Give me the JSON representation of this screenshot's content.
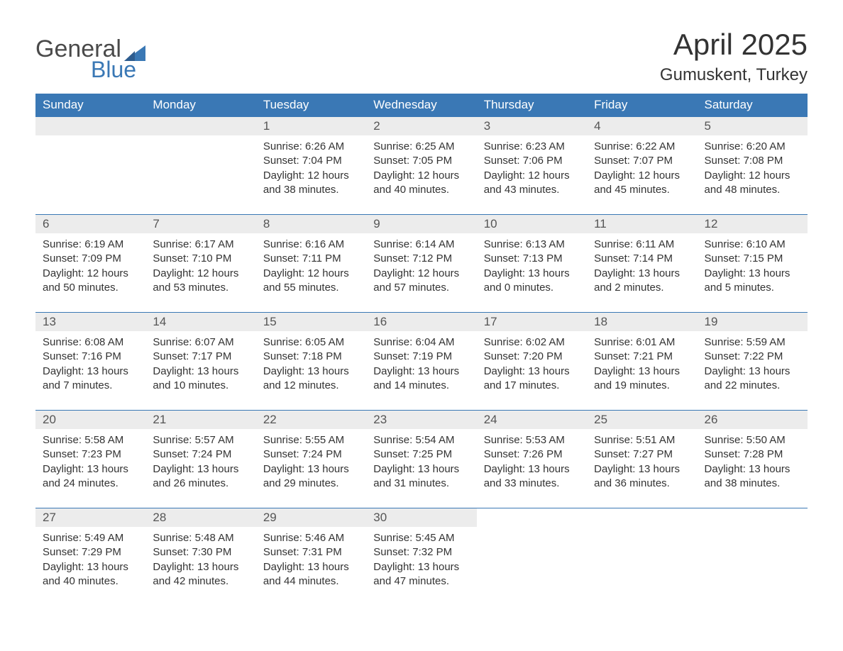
{
  "logo": {
    "text_general": "General",
    "text_blue": "Blue",
    "flag_color": "#3a78b5"
  },
  "title": {
    "month_year": "April 2025",
    "location": "Gumuskent, Turkey"
  },
  "calendar": {
    "header_bg": "#3a78b5",
    "header_fg": "#ffffff",
    "daynum_bg": "#ececec",
    "row_border": "#3a78b5",
    "text_color": "#333333",
    "background": "#ffffff",
    "columns": [
      "Sunday",
      "Monday",
      "Tuesday",
      "Wednesday",
      "Thursday",
      "Friday",
      "Saturday"
    ],
    "weeks": [
      [
        {
          "empty": true
        },
        {
          "empty": true
        },
        {
          "day": "1",
          "sunrise": "Sunrise: 6:26 AM",
          "sunset": "Sunset: 7:04 PM",
          "daylight1": "Daylight: 12 hours",
          "daylight2": "and 38 minutes."
        },
        {
          "day": "2",
          "sunrise": "Sunrise: 6:25 AM",
          "sunset": "Sunset: 7:05 PM",
          "daylight1": "Daylight: 12 hours",
          "daylight2": "and 40 minutes."
        },
        {
          "day": "3",
          "sunrise": "Sunrise: 6:23 AM",
          "sunset": "Sunset: 7:06 PM",
          "daylight1": "Daylight: 12 hours",
          "daylight2": "and 43 minutes."
        },
        {
          "day": "4",
          "sunrise": "Sunrise: 6:22 AM",
          "sunset": "Sunset: 7:07 PM",
          "daylight1": "Daylight: 12 hours",
          "daylight2": "and 45 minutes."
        },
        {
          "day": "5",
          "sunrise": "Sunrise: 6:20 AM",
          "sunset": "Sunset: 7:08 PM",
          "daylight1": "Daylight: 12 hours",
          "daylight2": "and 48 minutes."
        }
      ],
      [
        {
          "day": "6",
          "sunrise": "Sunrise: 6:19 AM",
          "sunset": "Sunset: 7:09 PM",
          "daylight1": "Daylight: 12 hours",
          "daylight2": "and 50 minutes."
        },
        {
          "day": "7",
          "sunrise": "Sunrise: 6:17 AM",
          "sunset": "Sunset: 7:10 PM",
          "daylight1": "Daylight: 12 hours",
          "daylight2": "and 53 minutes."
        },
        {
          "day": "8",
          "sunrise": "Sunrise: 6:16 AM",
          "sunset": "Sunset: 7:11 PM",
          "daylight1": "Daylight: 12 hours",
          "daylight2": "and 55 minutes."
        },
        {
          "day": "9",
          "sunrise": "Sunrise: 6:14 AM",
          "sunset": "Sunset: 7:12 PM",
          "daylight1": "Daylight: 12 hours",
          "daylight2": "and 57 minutes."
        },
        {
          "day": "10",
          "sunrise": "Sunrise: 6:13 AM",
          "sunset": "Sunset: 7:13 PM",
          "daylight1": "Daylight: 13 hours",
          "daylight2": "and 0 minutes."
        },
        {
          "day": "11",
          "sunrise": "Sunrise: 6:11 AM",
          "sunset": "Sunset: 7:14 PM",
          "daylight1": "Daylight: 13 hours",
          "daylight2": "and 2 minutes."
        },
        {
          "day": "12",
          "sunrise": "Sunrise: 6:10 AM",
          "sunset": "Sunset: 7:15 PM",
          "daylight1": "Daylight: 13 hours",
          "daylight2": "and 5 minutes."
        }
      ],
      [
        {
          "day": "13",
          "sunrise": "Sunrise: 6:08 AM",
          "sunset": "Sunset: 7:16 PM",
          "daylight1": "Daylight: 13 hours",
          "daylight2": "and 7 minutes."
        },
        {
          "day": "14",
          "sunrise": "Sunrise: 6:07 AM",
          "sunset": "Sunset: 7:17 PM",
          "daylight1": "Daylight: 13 hours",
          "daylight2": "and 10 minutes."
        },
        {
          "day": "15",
          "sunrise": "Sunrise: 6:05 AM",
          "sunset": "Sunset: 7:18 PM",
          "daylight1": "Daylight: 13 hours",
          "daylight2": "and 12 minutes."
        },
        {
          "day": "16",
          "sunrise": "Sunrise: 6:04 AM",
          "sunset": "Sunset: 7:19 PM",
          "daylight1": "Daylight: 13 hours",
          "daylight2": "and 14 minutes."
        },
        {
          "day": "17",
          "sunrise": "Sunrise: 6:02 AM",
          "sunset": "Sunset: 7:20 PM",
          "daylight1": "Daylight: 13 hours",
          "daylight2": "and 17 minutes."
        },
        {
          "day": "18",
          "sunrise": "Sunrise: 6:01 AM",
          "sunset": "Sunset: 7:21 PM",
          "daylight1": "Daylight: 13 hours",
          "daylight2": "and 19 minutes."
        },
        {
          "day": "19",
          "sunrise": "Sunrise: 5:59 AM",
          "sunset": "Sunset: 7:22 PM",
          "daylight1": "Daylight: 13 hours",
          "daylight2": "and 22 minutes."
        }
      ],
      [
        {
          "day": "20",
          "sunrise": "Sunrise: 5:58 AM",
          "sunset": "Sunset: 7:23 PM",
          "daylight1": "Daylight: 13 hours",
          "daylight2": "and 24 minutes."
        },
        {
          "day": "21",
          "sunrise": "Sunrise: 5:57 AM",
          "sunset": "Sunset: 7:24 PM",
          "daylight1": "Daylight: 13 hours",
          "daylight2": "and 26 minutes."
        },
        {
          "day": "22",
          "sunrise": "Sunrise: 5:55 AM",
          "sunset": "Sunset: 7:24 PM",
          "daylight1": "Daylight: 13 hours",
          "daylight2": "and 29 minutes."
        },
        {
          "day": "23",
          "sunrise": "Sunrise: 5:54 AM",
          "sunset": "Sunset: 7:25 PM",
          "daylight1": "Daylight: 13 hours",
          "daylight2": "and 31 minutes."
        },
        {
          "day": "24",
          "sunrise": "Sunrise: 5:53 AM",
          "sunset": "Sunset: 7:26 PM",
          "daylight1": "Daylight: 13 hours",
          "daylight2": "and 33 minutes."
        },
        {
          "day": "25",
          "sunrise": "Sunrise: 5:51 AM",
          "sunset": "Sunset: 7:27 PM",
          "daylight1": "Daylight: 13 hours",
          "daylight2": "and 36 minutes."
        },
        {
          "day": "26",
          "sunrise": "Sunrise: 5:50 AM",
          "sunset": "Sunset: 7:28 PM",
          "daylight1": "Daylight: 13 hours",
          "daylight2": "and 38 minutes."
        }
      ],
      [
        {
          "day": "27",
          "sunrise": "Sunrise: 5:49 AM",
          "sunset": "Sunset: 7:29 PM",
          "daylight1": "Daylight: 13 hours",
          "daylight2": "and 40 minutes."
        },
        {
          "day": "28",
          "sunrise": "Sunrise: 5:48 AM",
          "sunset": "Sunset: 7:30 PM",
          "daylight1": "Daylight: 13 hours",
          "daylight2": "and 42 minutes."
        },
        {
          "day": "29",
          "sunrise": "Sunrise: 5:46 AM",
          "sunset": "Sunset: 7:31 PM",
          "daylight1": "Daylight: 13 hours",
          "daylight2": "and 44 minutes."
        },
        {
          "day": "30",
          "sunrise": "Sunrise: 5:45 AM",
          "sunset": "Sunset: 7:32 PM",
          "daylight1": "Daylight: 13 hours",
          "daylight2": "and 47 minutes."
        },
        {
          "empty": true,
          "noborder": true
        },
        {
          "empty": true,
          "noborder": true
        },
        {
          "empty": true,
          "noborder": true
        }
      ]
    ]
  }
}
